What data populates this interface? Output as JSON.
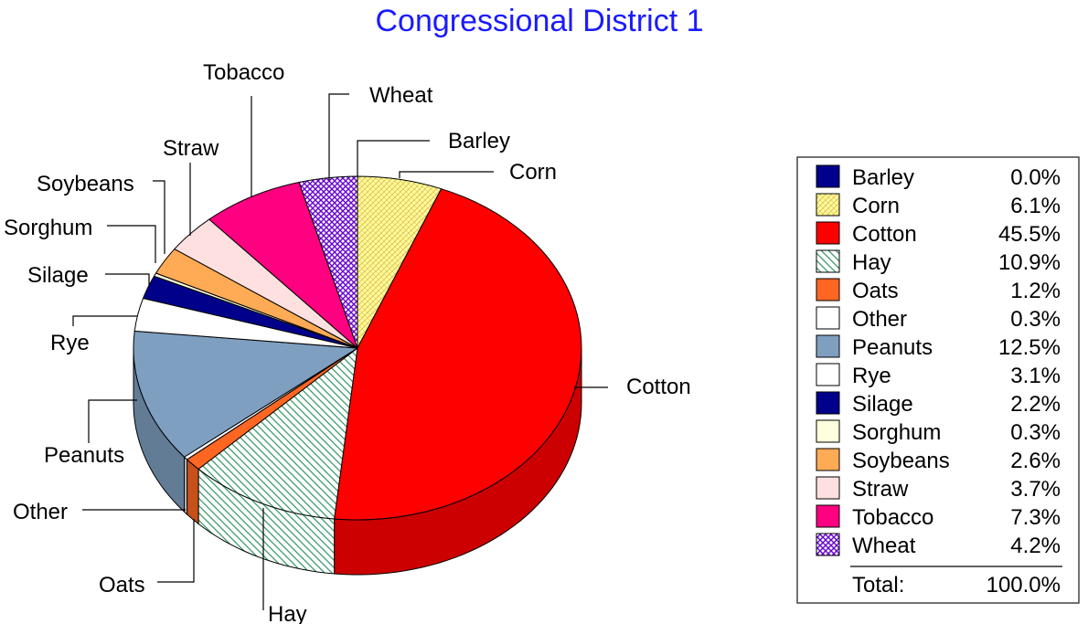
{
  "chart_data": {
    "type": "pie",
    "title": "Congressional District 1",
    "categories": [
      "Barley",
      "Corn",
      "Cotton",
      "Hay",
      "Oats",
      "Other",
      "Peanuts",
      "Rye",
      "Silage",
      "Sorghum",
      "Soybeans",
      "Straw",
      "Tobacco",
      "Wheat"
    ],
    "values": [
      0.0,
      6.1,
      45.5,
      10.9,
      1.2,
      0.3,
      12.5,
      3.1,
      2.2,
      0.3,
      2.6,
      3.7,
      7.3,
      4.2
    ],
    "value_labels": [
      "0.0%",
      "6.1%",
      "45.5%",
      "10.9%",
      "1.2%",
      "0.3%",
      "12.5%",
      "3.1%",
      "2.2%",
      "0.3%",
      "2.6%",
      "3.7%",
      "7.3%",
      "4.2%"
    ],
    "colors": [
      "#00008b",
      "#ffff99",
      "#ff0000",
      "#ffffff",
      "#ff6622",
      "#ffffff",
      "#7f9fc0",
      "#ffffff",
      "#00008b",
      "#ffffdd",
      "#ffaa55",
      "#ffe0e0",
      "#ff0080",
      "#ffffff"
    ],
    "patterns": [
      "solid",
      "corn-hatch",
      "solid",
      "hay-hatch",
      "solid",
      "solid",
      "solid",
      "solid",
      "solid",
      "solid",
      "solid",
      "solid",
      "solid",
      "wheat-hatch"
    ],
    "legend_placement": "right",
    "total_label": "Total:",
    "total_value": "100.0%"
  }
}
